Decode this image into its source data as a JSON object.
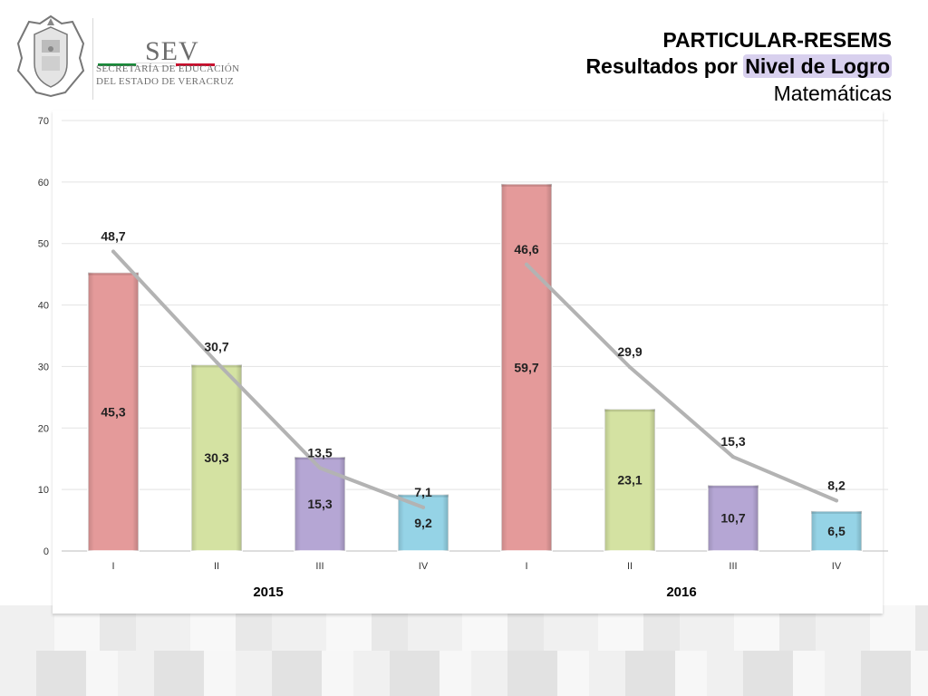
{
  "logo": {
    "brand": "SEV",
    "line1": "SECRETARÍA DE EDUCACIÓN",
    "line2": "DEL ESTADO DE VERACRUZ",
    "bar_colors": [
      "#1a8a3a",
      "#ffffff",
      "#c8102e"
    ]
  },
  "header": {
    "title": "PARTICULAR-RESEMS",
    "subtitle_prefix": "Resultados por ",
    "subtitle_highlight": "Nivel de Logro",
    "subject": "Matemáticas"
  },
  "chart_data": {
    "type": "bar",
    "ylim": [
      0,
      70
    ],
    "yticks": [
      0,
      10,
      20,
      30,
      40,
      50,
      60,
      70
    ],
    "grid": true,
    "groups": [
      {
        "name": "2015",
        "categories": [
          "I",
          "II",
          "III",
          "IV"
        ],
        "bar_values": [
          45.3,
          30.3,
          15.3,
          9.2
        ],
        "bar_labels": [
          "45,3",
          "30,3",
          "15,3",
          "9,2"
        ],
        "line_values": [
          48.7,
          30.7,
          13.5,
          7.1
        ],
        "line_labels": [
          "48,7",
          "30,7",
          "13,5",
          "7,1"
        ]
      },
      {
        "name": "2016",
        "categories": [
          "I",
          "II",
          "III",
          "IV"
        ],
        "bar_values": [
          59.7,
          23.1,
          10.7,
          6.5
        ],
        "bar_labels": [
          "59,7",
          "23,1",
          "10,7",
          "6,5"
        ],
        "line_values": [
          46.6,
          29.9,
          15.3,
          8.2
        ],
        "line_labels": [
          "46,6",
          "29,9",
          "15,3",
          "8,2"
        ]
      }
    ],
    "bar_colors": [
      "#e49a9a",
      "#d4e2a2",
      "#b5a6d4",
      "#95d3e6"
    ],
    "line_color": "#b3b3b3"
  }
}
